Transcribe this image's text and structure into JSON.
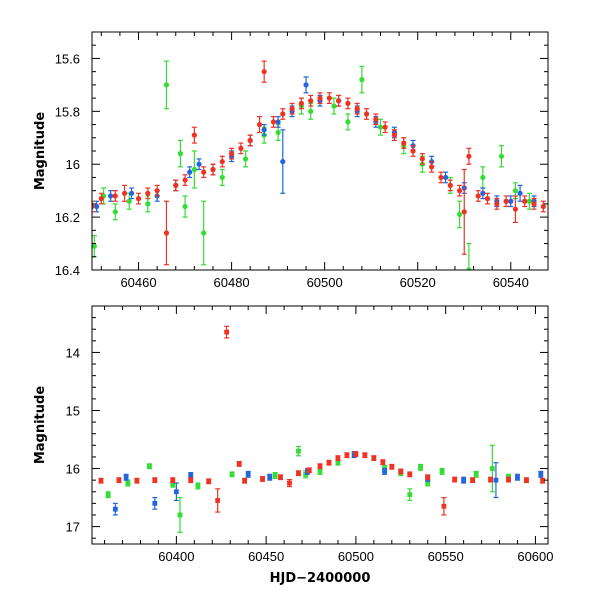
{
  "chart_data": [
    {
      "type": "scatter",
      "ylabel": "Magnitude",
      "xlabel": "",
      "xlim": [
        60450,
        60548
      ],
      "ylim": [
        16.4,
        15.5
      ],
      "y_inverted": true,
      "x_major_ticks": [
        60460,
        60480,
        60500,
        60520,
        60540
      ],
      "x_tick_labels": [
        "60460",
        "60480",
        "60500",
        "60520",
        "60540"
      ],
      "x_minor_step": 4,
      "y_major_ticks": [
        15.6,
        15.8,
        16.0,
        16.2,
        16.4
      ],
      "y_tick_labels": [
        "15.6",
        "15.8",
        "16",
        "16.2",
        "16.4"
      ],
      "y_minor_step": 0.05,
      "grid": false,
      "series": [
        {
          "color": "#33dd33",
          "marker": "circle",
          "points": [
            [
              60450.5,
              16.31,
              0.04
            ],
            [
              60452.5,
              16.12,
              0.03
            ],
            [
              60455.0,
              16.18,
              0.03
            ],
            [
              60458.0,
              16.14,
              0.03
            ],
            [
              60462.0,
              16.15,
              0.03
            ],
            [
              60466.0,
              15.7,
              0.09
            ],
            [
              60469.0,
              15.96,
              0.05
            ],
            [
              60470.0,
              16.16,
              0.04
            ],
            [
              60472.0,
              16.02,
              0.07
            ],
            [
              60474.0,
              16.26,
              0.12
            ],
            [
              60478.0,
              16.05,
              0.03
            ],
            [
              60483.0,
              15.98,
              0.03
            ],
            [
              60487.0,
              15.89,
              0.03
            ],
            [
              60490.0,
              15.88,
              0.03
            ],
            [
              60495.0,
              15.78,
              0.03
            ],
            [
              60497.0,
              15.8,
              0.03
            ],
            [
              60502.0,
              15.78,
              0.03
            ],
            [
              60505.0,
              15.84,
              0.03
            ],
            [
              60508.0,
              15.68,
              0.05
            ],
            [
              60512.0,
              15.86,
              0.03
            ],
            [
              60517.0,
              15.93,
              0.03
            ],
            [
              60521.0,
              16.0,
              0.03
            ],
            [
              60527.0,
              16.08,
              0.03
            ],
            [
              60529.0,
              16.19,
              0.05
            ],
            [
              60531.0,
              16.4,
              0.1
            ],
            [
              60534.0,
              16.05,
              0.04
            ],
            [
              60538.0,
              15.97,
              0.04
            ],
            [
              60541.0,
              16.1,
              0.03
            ],
            [
              60544.0,
              16.14,
              0.03
            ]
          ]
        },
        {
          "color": "#2266dd",
          "marker": "circle",
          "points": [
            [
              60451.0,
              16.16,
              0.02
            ],
            [
              60454.0,
              16.12,
              0.02
            ],
            [
              60458.5,
              16.11,
              0.02
            ],
            [
              60464.0,
              16.12,
              0.02
            ],
            [
              60468.0,
              16.08,
              0.02
            ],
            [
              60471.0,
              16.03,
              0.02
            ],
            [
              60473.0,
              16.0,
              0.02
            ],
            [
              60476.0,
              16.02,
              0.02
            ],
            [
              60480.0,
              15.97,
              0.02
            ],
            [
              60484.0,
              15.91,
              0.02
            ],
            [
              60487.0,
              15.87,
              0.02
            ],
            [
              60490.0,
              15.84,
              0.02
            ],
            [
              60491.0,
              15.99,
              0.12
            ],
            [
              60493.0,
              15.8,
              0.02
            ],
            [
              60496.0,
              15.7,
              0.03
            ],
            [
              60499.0,
              15.76,
              0.02
            ],
            [
              60503.0,
              15.76,
              0.02
            ],
            [
              60507.0,
              15.8,
              0.02
            ],
            [
              60511.0,
              15.84,
              0.02
            ],
            [
              60515.0,
              15.88,
              0.02
            ],
            [
              60519.0,
              15.93,
              0.02
            ],
            [
              60523.0,
              15.99,
              0.02
            ],
            [
              60526.0,
              16.05,
              0.02
            ],
            [
              60530.0,
              16.09,
              0.02
            ],
            [
              60534.0,
              16.11,
              0.02
            ],
            [
              60537.0,
              16.14,
              0.02
            ],
            [
              60540.0,
              16.14,
              0.02
            ],
            [
              60542.0,
              16.11,
              0.03
            ],
            [
              60545.0,
              16.14,
              0.02
            ]
          ]
        },
        {
          "color": "#ee3322",
          "marker": "circle",
          "points": [
            [
              60450.0,
              16.16,
              0.02
            ],
            [
              60452.0,
              16.13,
              0.02
            ],
            [
              60455.0,
              16.12,
              0.02
            ],
            [
              60457.0,
              16.11,
              0.03
            ],
            [
              60460.0,
              16.13,
              0.02
            ],
            [
              60462.0,
              16.11,
              0.02
            ],
            [
              60464.0,
              16.1,
              0.02
            ],
            [
              60466.0,
              16.26,
              0.12
            ],
            [
              60468.0,
              16.08,
              0.02
            ],
            [
              60470.0,
              16.06,
              0.02
            ],
            [
              60472.0,
              15.89,
              0.03
            ],
            [
              60474.0,
              16.03,
              0.02
            ],
            [
              60476.0,
              16.02,
              0.02
            ],
            [
              60478.0,
              15.99,
              0.02
            ],
            [
              60480.0,
              15.96,
              0.02
            ],
            [
              60482.0,
              15.94,
              0.02
            ],
            [
              60484.0,
              15.91,
              0.02
            ],
            [
              60486.0,
              15.85,
              0.03
            ],
            [
              60487.0,
              15.65,
              0.04
            ],
            [
              60489.0,
              15.84,
              0.02
            ],
            [
              60491.0,
              15.81,
              0.02
            ],
            [
              60493.0,
              15.79,
              0.02
            ],
            [
              60495.0,
              15.77,
              0.02
            ],
            [
              60497.0,
              15.76,
              0.02
            ],
            [
              60499.0,
              15.75,
              0.02
            ],
            [
              60501.0,
              15.75,
              0.02
            ],
            [
              60503.0,
              15.76,
              0.02
            ],
            [
              60505.0,
              15.77,
              0.02
            ],
            [
              60507.0,
              15.79,
              0.02
            ],
            [
              60509.0,
              15.81,
              0.02
            ],
            [
              60511.0,
              15.83,
              0.02
            ],
            [
              60513.0,
              15.86,
              0.02
            ],
            [
              60515.0,
              15.89,
              0.02
            ],
            [
              60517.0,
              15.92,
              0.02
            ],
            [
              60519.0,
              15.95,
              0.02
            ],
            [
              60521.0,
              15.98,
              0.02
            ],
            [
              60523.0,
              16.01,
              0.02
            ],
            [
              60525.0,
              16.05,
              0.02
            ],
            [
              60527.0,
              16.08,
              0.02
            ],
            [
              60529.0,
              16.1,
              0.02
            ],
            [
              60530.0,
              16.18,
              0.16
            ],
            [
              60531.0,
              15.97,
              0.03
            ],
            [
              60533.0,
              16.12,
              0.02
            ],
            [
              60535.0,
              16.13,
              0.02
            ],
            [
              60537.0,
              16.15,
              0.02
            ],
            [
              60539.0,
              16.14,
              0.02
            ],
            [
              60541.0,
              16.17,
              0.05
            ],
            [
              60543.0,
              16.14,
              0.02
            ],
            [
              60545.0,
              16.15,
              0.02
            ],
            [
              60547.0,
              16.16,
              0.02
            ]
          ]
        }
      ]
    },
    {
      "type": "scatter",
      "ylabel": "Magnitude",
      "xlabel": "HJD−2400000",
      "xlim": [
        60353,
        60607
      ],
      "ylim": [
        17.3,
        13.2
      ],
      "y_inverted": true,
      "x_major_ticks": [
        60400,
        60450,
        60500,
        60550,
        60600
      ],
      "x_tick_labels": [
        "60400",
        "60450",
        "60500",
        "60550",
        "60600"
      ],
      "x_minor_step": 10,
      "y_major_ticks": [
        14,
        15,
        16,
        17
      ],
      "y_tick_labels": [
        "14",
        "15",
        "16",
        "17"
      ],
      "y_minor_step": 0.2,
      "grid": false,
      "series": [
        {
          "color": "#33dd33",
          "marker": "square",
          "points": [
            [
              60362,
              16.45,
              0.05
            ],
            [
              60373,
              16.25,
              0.05
            ],
            [
              60385,
              15.96,
              0.04
            ],
            [
              60398,
              16.27,
              0.05
            ],
            [
              60402,
              16.8,
              0.3
            ],
            [
              60412,
              16.3,
              0.05
            ],
            [
              60431,
              16.1,
              0.04
            ],
            [
              60455,
              16.12,
              0.05
            ],
            [
              60468,
              15.7,
              0.08
            ],
            [
              60472,
              16.1,
              0.06
            ],
            [
              60480,
              16.05,
              0.05
            ],
            [
              60490,
              15.9,
              0.04
            ],
            [
              60516,
              16.0,
              0.05
            ],
            [
              60525,
              16.07,
              0.05
            ],
            [
              60530,
              16.45,
              0.1
            ],
            [
              60536,
              15.98,
              0.05
            ],
            [
              60540,
              16.25,
              0.05
            ],
            [
              60548,
              16.05,
              0.05
            ],
            [
              60567,
              16.1,
              0.05
            ],
            [
              60576,
              16.0,
              0.4
            ],
            [
              60585,
              16.15,
              0.05
            ]
          ]
        },
        {
          "color": "#2266dd",
          "marker": "square",
          "points": [
            [
              60366,
              16.7,
              0.1
            ],
            [
              60372,
              16.15,
              0.05
            ],
            [
              60388,
              16.6,
              0.1
            ],
            [
              60400,
              16.4,
              0.15
            ],
            [
              60408,
              16.12,
              0.05
            ],
            [
              60440,
              16.1,
              0.05
            ],
            [
              60452,
              16.15,
              0.05
            ],
            [
              60473,
              16.05,
              0.05
            ],
            [
              60499,
              15.76,
              0.05
            ],
            [
              60516,
              16.05,
              0.05
            ],
            [
              60540,
              16.17,
              0.05
            ],
            [
              60560,
              16.2,
              0.05
            ],
            [
              60578,
              16.2,
              0.3
            ],
            [
              60590,
              16.15,
              0.05
            ],
            [
              60603,
              16.1,
              0.05
            ]
          ]
        },
        {
          "color": "#ee3322",
          "marker": "square",
          "points": [
            [
              60358,
              16.21,
              0.04
            ],
            [
              60368,
              16.2,
              0.04
            ],
            [
              60378,
              16.21,
              0.04
            ],
            [
              60388,
              16.2,
              0.04
            ],
            [
              60398,
              16.2,
              0.04
            ],
            [
              60408,
              16.2,
              0.04
            ],
            [
              60418,
              16.22,
              0.04
            ],
            [
              60423,
              16.55,
              0.2
            ],
            [
              60428,
              13.65,
              0.1
            ],
            [
              60435,
              15.92,
              0.04
            ],
            [
              60438,
              16.21,
              0.04
            ],
            [
              60448,
              16.18,
              0.04
            ],
            [
              60458,
              16.15,
              0.04
            ],
            [
              60463,
              16.25,
              0.06
            ],
            [
              60468,
              16.08,
              0.04
            ],
            [
              60474,
              16.03,
              0.04
            ],
            [
              60480,
              15.96,
              0.04
            ],
            [
              60485,
              15.9,
              0.04
            ],
            [
              60490,
              15.82,
              0.04
            ],
            [
              60495,
              15.77,
              0.04
            ],
            [
              60500,
              15.75,
              0.04
            ],
            [
              60505,
              15.77,
              0.04
            ],
            [
              60510,
              15.82,
              0.04
            ],
            [
              60515,
              15.89,
              0.04
            ],
            [
              60520,
              15.97,
              0.04
            ],
            [
              60525,
              16.05,
              0.04
            ],
            [
              60530,
              16.1,
              0.04
            ],
            [
              60540,
              16.15,
              0.04
            ],
            [
              60549,
              16.65,
              0.15
            ],
            [
              60555,
              16.19,
              0.04
            ],
            [
              60565,
              16.2,
              0.04
            ],
            [
              60575,
              16.19,
              0.04
            ],
            [
              60585,
              16.19,
              0.04
            ],
            [
              60595,
              16.2,
              0.04
            ],
            [
              60604,
              16.21,
              0.04
            ]
          ]
        }
      ]
    }
  ]
}
